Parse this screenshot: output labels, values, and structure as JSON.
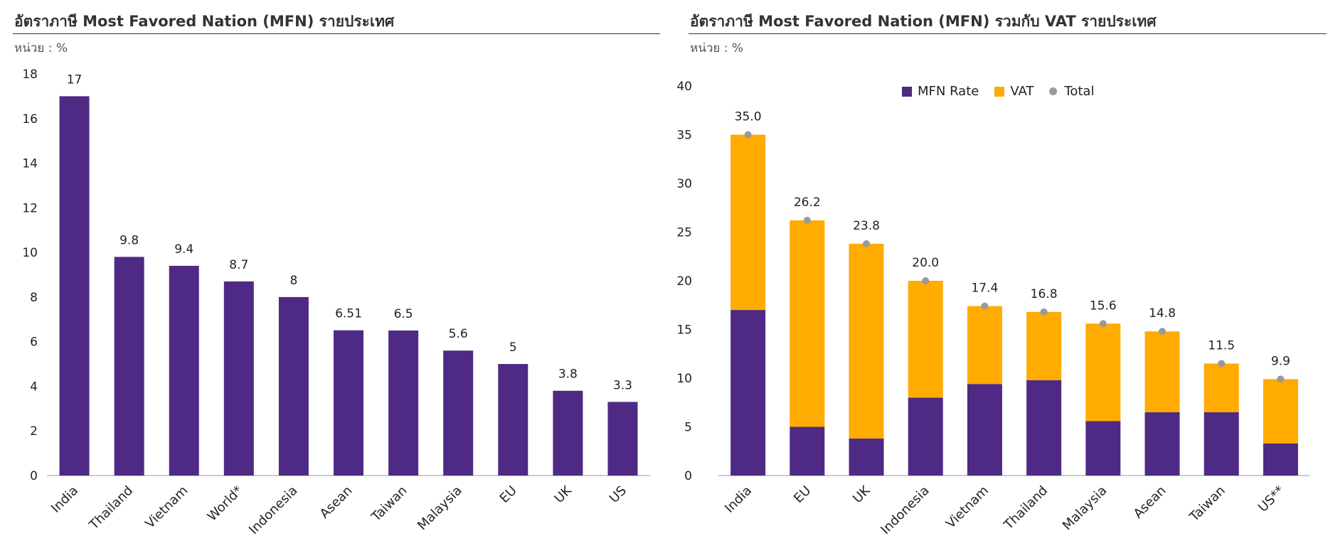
{
  "colors": {
    "mfn": "#4e2a84",
    "vat": "#ffab00",
    "total": "#999999",
    "axis": "#bbbbbb"
  },
  "left_panel": {
    "title": "อัตราภาษี Most Favored Nation (MFN) รายประเทศ",
    "unit": "หน่วย : %"
  },
  "right_panel": {
    "title": "อัตราภาษี Most Favored Nation (MFN) รวมกับ VAT รายประเทศ",
    "unit": "หน่วย : %"
  },
  "chart_data": [
    {
      "type": "bar",
      "title": "อัตราภาษี Most Favored Nation (MFN) รายประเทศ",
      "categories": [
        "India",
        "Thailand",
        "Vietnam",
        "World*",
        "Indonesia",
        "Asean",
        "Taiwan",
        "Malaysia",
        "EU",
        "UK",
        "US"
      ],
      "values": [
        17,
        9.8,
        9.4,
        8.7,
        8,
        6.51,
        6.5,
        5.6,
        5,
        3.8,
        3.3
      ],
      "data_labels": [
        "17",
        "9.8",
        "9.4",
        "8.7",
        "8",
        "6.51",
        "6.5",
        "5.6",
        "5",
        "3.8",
        "3.3"
      ],
      "ylim": [
        0,
        18
      ],
      "yticks": [
        0,
        2,
        4,
        6,
        8,
        10,
        12,
        14,
        16,
        18
      ],
      "grid": false
    },
    {
      "type": "bar",
      "stacked": true,
      "title": "อัตราภาษี Most Favored Nation (MFN) รวมกับ VAT รายประเทศ",
      "categories": [
        "India",
        "EU",
        "UK",
        "Indonesia",
        "Vietnam",
        "Thailand",
        "Malaysia",
        "Asean",
        "Taiwan",
        "US**"
      ],
      "series": [
        {
          "name": "MFN Rate",
          "values": [
            17,
            5,
            3.8,
            8,
            9.4,
            9.8,
            5.6,
            6.5,
            6.5,
            3.3
          ]
        },
        {
          "name": "VAT",
          "values": [
            18,
            21.2,
            20,
            12,
            8,
            7,
            10,
            8.3,
            5,
            6.6
          ]
        }
      ],
      "totals": {
        "name": "Total",
        "values": [
          35.0,
          26.2,
          23.8,
          20.0,
          17.4,
          16.8,
          15.6,
          14.8,
          11.5,
          9.9
        ],
        "labels": [
          "35.0",
          "26.2",
          "23.8",
          "20.0",
          "17.4",
          "16.8",
          "15.6",
          "14.8",
          "11.5",
          "9.9"
        ]
      },
      "ylim": [
        0,
        40
      ],
      "yticks": [
        0,
        5,
        10,
        15,
        20,
        25,
        30,
        35,
        40
      ],
      "legend": "top-center",
      "grid": false
    }
  ]
}
